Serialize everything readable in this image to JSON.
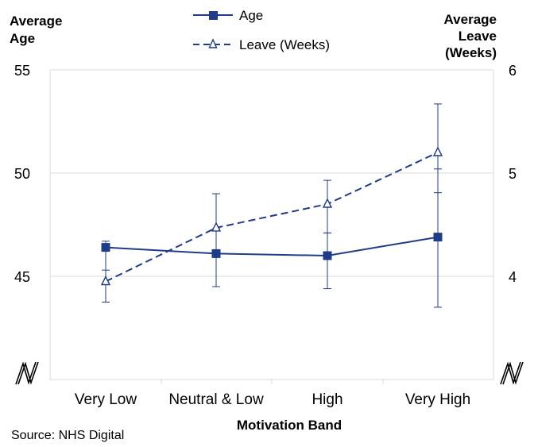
{
  "chart_data": {
    "type": "line",
    "title": "",
    "xlabel": "Motivation Band",
    "ylabel_left": [
      "Average",
      "Age"
    ],
    "ylabel_right": [
      "Average",
      "Leave",
      "(Weeks)"
    ],
    "categories": [
      "Very Low",
      "Neutral & Low",
      "High",
      "Very High"
    ],
    "left_axis": {
      "ylim": [
        45,
        55
      ],
      "ticks": [
        "45",
        "50",
        "55"
      ],
      "broken": true
    },
    "right_axis": {
      "ylim": [
        4,
        6
      ],
      "ticks": [
        "4",
        "5",
        "6"
      ],
      "broken": true
    },
    "grid": true,
    "legend_position": "top-center",
    "series": [
      {
        "name": "Age",
        "axis": "left",
        "marker": "filled-square",
        "line_style": "solid",
        "values": [
          46.4,
          46.1,
          46.0,
          46.9
        ],
        "error_low": [
          45.3,
          44.5,
          44.4,
          43.5
        ],
        "error_high": [
          46.7,
          47.3,
          47.1,
          50.2
        ]
      },
      {
        "name": "Leave (Weeks)",
        "axis": "right",
        "marker": "open-triangle",
        "line_style": "dashed",
        "values": [
          3.95,
          4.47,
          4.7,
          5.2
        ],
        "error_low": [
          3.75,
          4.2,
          4.42,
          4.81
        ],
        "error_high": [
          4.25,
          4.8,
          4.93,
          5.67
        ]
      }
    ],
    "source": "Source: NHS Digital"
  },
  "colors": {
    "series": "#1f3c88",
    "grid": "#d9d9d9",
    "text": "#000000"
  }
}
